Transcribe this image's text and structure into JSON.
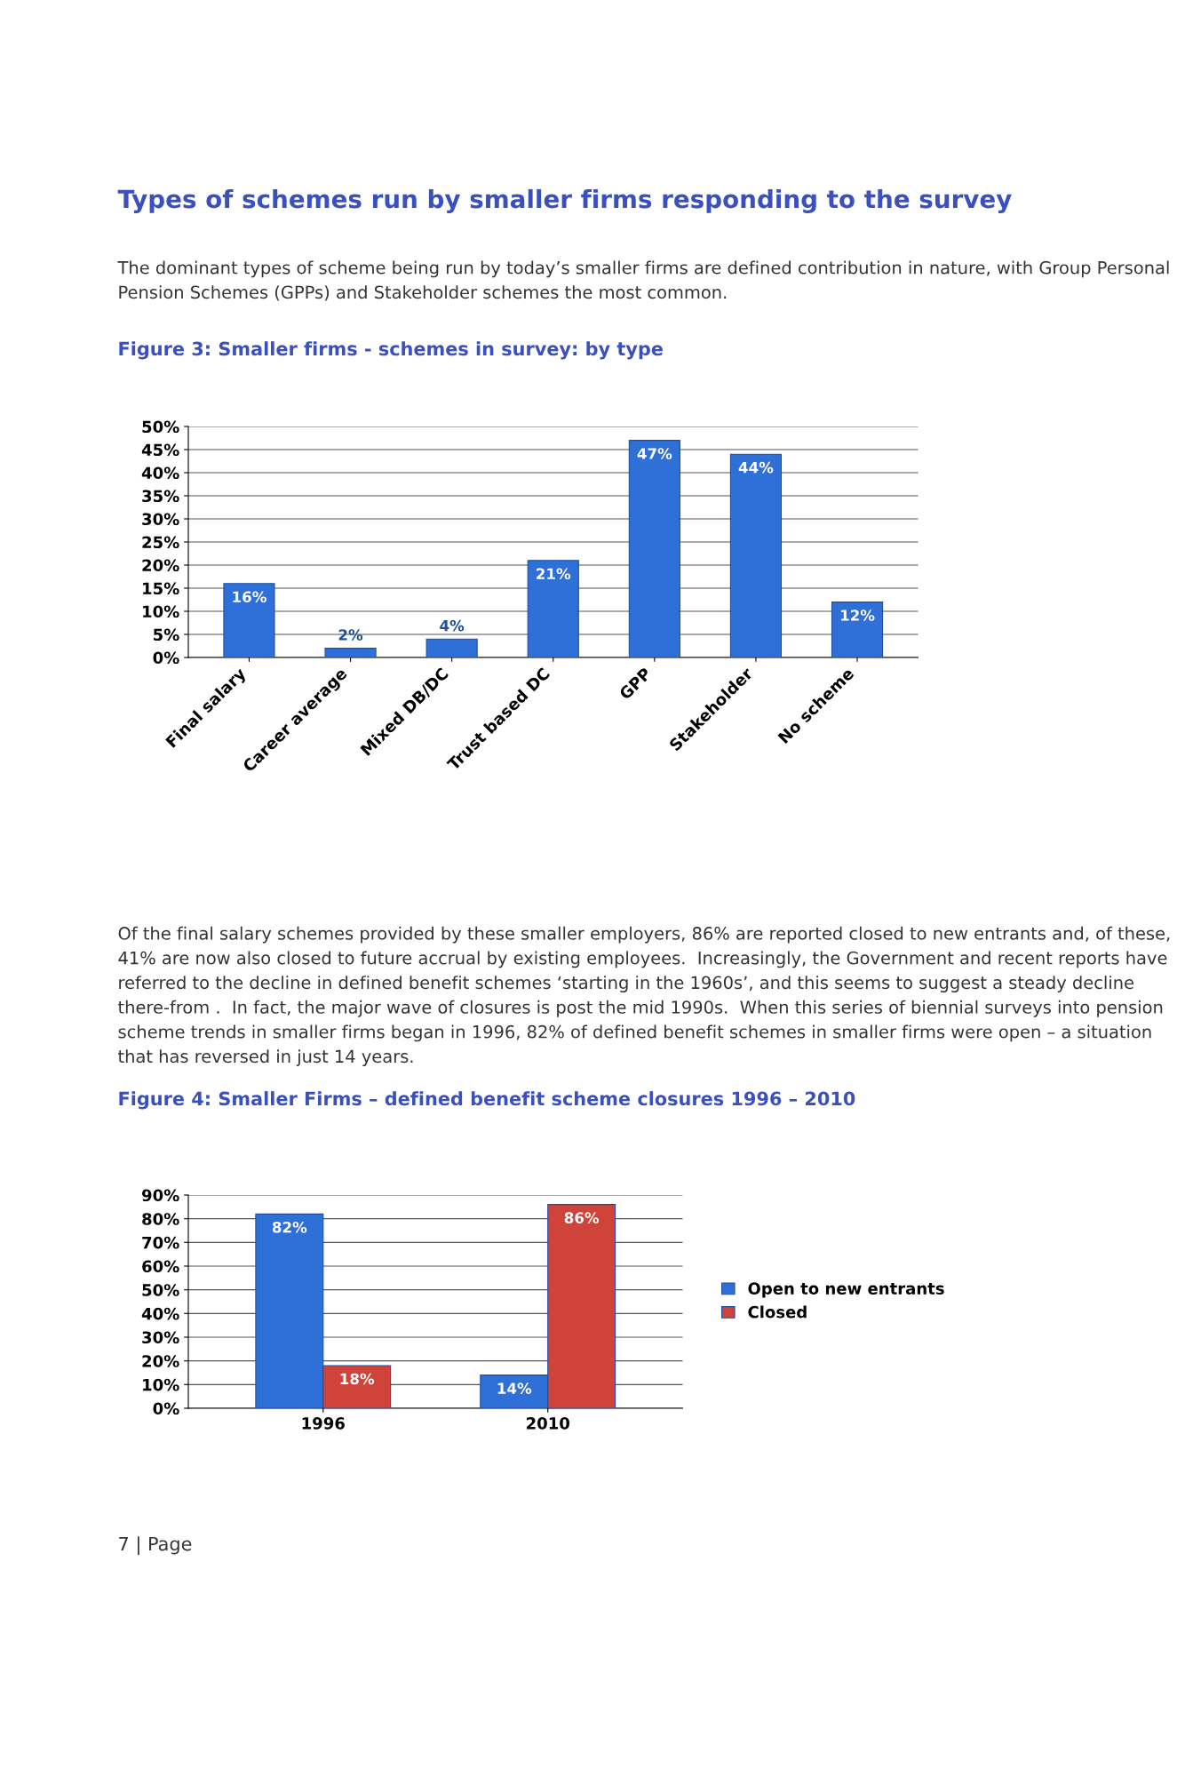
{
  "chart_data": [
    {
      "type": "bar",
      "title": "Figure 3: Smaller firms - schemes in survey: by type",
      "annotations": [
        "Types of schemes run by smaller firms responding to the survey",
        "The dominant types of scheme being run by today’s smaller firms are defined contribution in nature, with Group Personal Pension Schemes (GPPs) and Stakeholder schemes the most common."
      ],
      "categories": [
        "Final salary",
        "Career average",
        "Mixed DB/DC",
        "Trust based DC",
        "GPP",
        "Stakeholder",
        "No scheme"
      ],
      "series": [
        {
          "color": "#2f6fd8",
          "values": [
            16,
            2,
            4,
            21,
            47,
            44,
            12
          ],
          "value_labels": [
            "16%",
            "2%",
            "4%",
            "21%",
            "47%",
            "44%",
            "12%"
          ]
        }
      ],
      "ylim": [
        0,
        50
      ],
      "yticks": [
        {
          "value": 0,
          "label": "0%"
        },
        {
          "value": 5,
          "label": "5%"
        },
        {
          "value": 10,
          "label": "10%"
        },
        {
          "value": 15,
          "label": "15%"
        },
        {
          "value": 20,
          "label": "20%"
        },
        {
          "value": 25,
          "label": "25%"
        },
        {
          "value": 30,
          "label": "30%"
        },
        {
          "value": 35,
          "label": "35%"
        },
        {
          "value": 40,
          "label": "40%"
        },
        {
          "value": 45,
          "label": "45%"
        },
        {
          "value": 50,
          "label": "50%"
        }
      ],
      "grid": "y",
      "legend": false
    },
    {
      "type": "bar",
      "title": "Figure 4: Smaller Firms – defined benefit scheme closures 1996 – 2010",
      "annotations": [
        "Of the final salary schemes provided by these smaller employers, 86% are reported closed to new entrants and, of these, 41% are now also closed to future accrual by existing employees.  Increasingly, the Government and recent reports have referred to the decline in defined benefit schemes ‘starting in the 1960s’, and this seems to suggest a steady decline there-from .  In fact, the major wave of closures is post the mid 1990s.  When this series of biennial surveys into pension scheme trends in smaller firms began in 1996, 82% of defined benefit schemes in smaller firms were open – a situation that has reversed in just 14 years.",
        "7 | Page"
      ],
      "categories": [
        "1996",
        "2010"
      ],
      "series": [
        {
          "name": "Open to new entrants",
          "color": "#2f6fd8",
          "values": [
            82,
            14
          ],
          "value_labels": [
            "82%",
            "14%"
          ]
        },
        {
          "name": "Closed",
          "color": "#d0433a",
          "values": [
            18,
            86
          ],
          "value_labels": [
            "18%",
            "86%"
          ]
        }
      ],
      "ylim": [
        0,
        90
      ],
      "yticks": [
        {
          "value": 0,
          "label": "0%"
        },
        {
          "value": 10,
          "label": "10%"
        },
        {
          "value": 20,
          "label": "20%"
        },
        {
          "value": 30,
          "label": "30%"
        },
        {
          "value": 40,
          "label": "40%"
        },
        {
          "value": 50,
          "label": "50%"
        },
        {
          "value": 60,
          "label": "60%"
        },
        {
          "value": 70,
          "label": "70%"
        },
        {
          "value": 80,
          "label": "80%"
        },
        {
          "value": 90,
          "label": "90%"
        }
      ],
      "grid": "y",
      "legend": "right"
    }
  ]
}
